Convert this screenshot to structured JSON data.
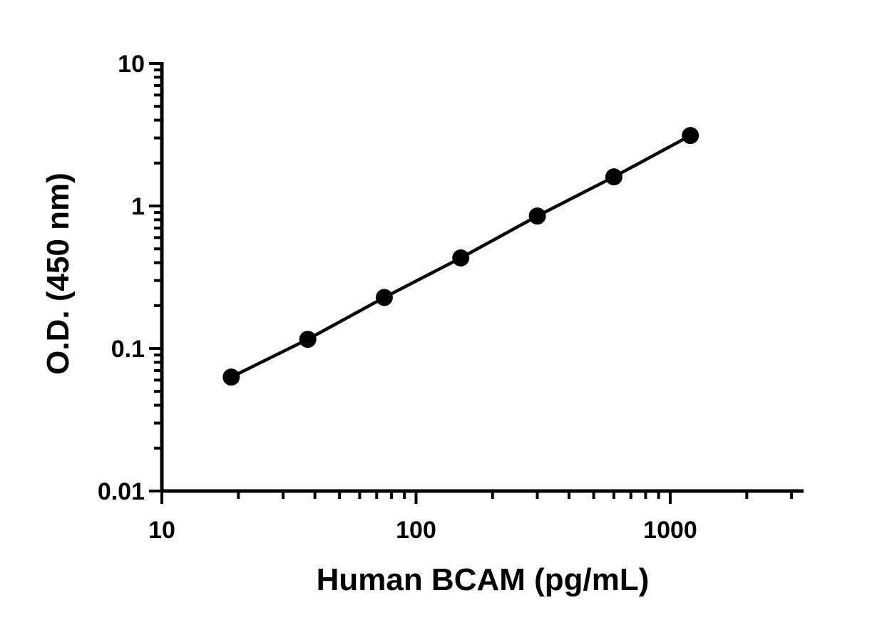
{
  "chart_data": {
    "type": "scatter",
    "title": "",
    "xlabel": "Human BCAM (pg/mL)",
    "ylabel": "O.D. (450 nm)",
    "x_scale": "log",
    "y_scale": "log",
    "xlim": [
      10,
      3000
    ],
    "ylim": [
      0.01,
      10
    ],
    "x_ticks": [
      {
        "value": 10,
        "label": "10"
      },
      {
        "value": 100,
        "label": "100"
      },
      {
        "value": 1000,
        "label": "1000"
      }
    ],
    "y_ticks": [
      {
        "value": 0.01,
        "label": "0.01"
      },
      {
        "value": 0.1,
        "label": "0.1"
      },
      {
        "value": 1,
        "label": "1"
      },
      {
        "value": 10,
        "label": "10"
      }
    ],
    "grid": false,
    "legend": "none",
    "colors": {
      "marker": "#000000",
      "line": "#000000",
      "axis": "#000000"
    },
    "series": [
      {
        "x": [
          18.75,
          37.5,
          75,
          150,
          300,
          600,
          1200
        ],
        "y": [
          0.063,
          0.116,
          0.228,
          0.432,
          0.85,
          1.6,
          3.12
        ],
        "fit_line": true
      }
    ]
  }
}
